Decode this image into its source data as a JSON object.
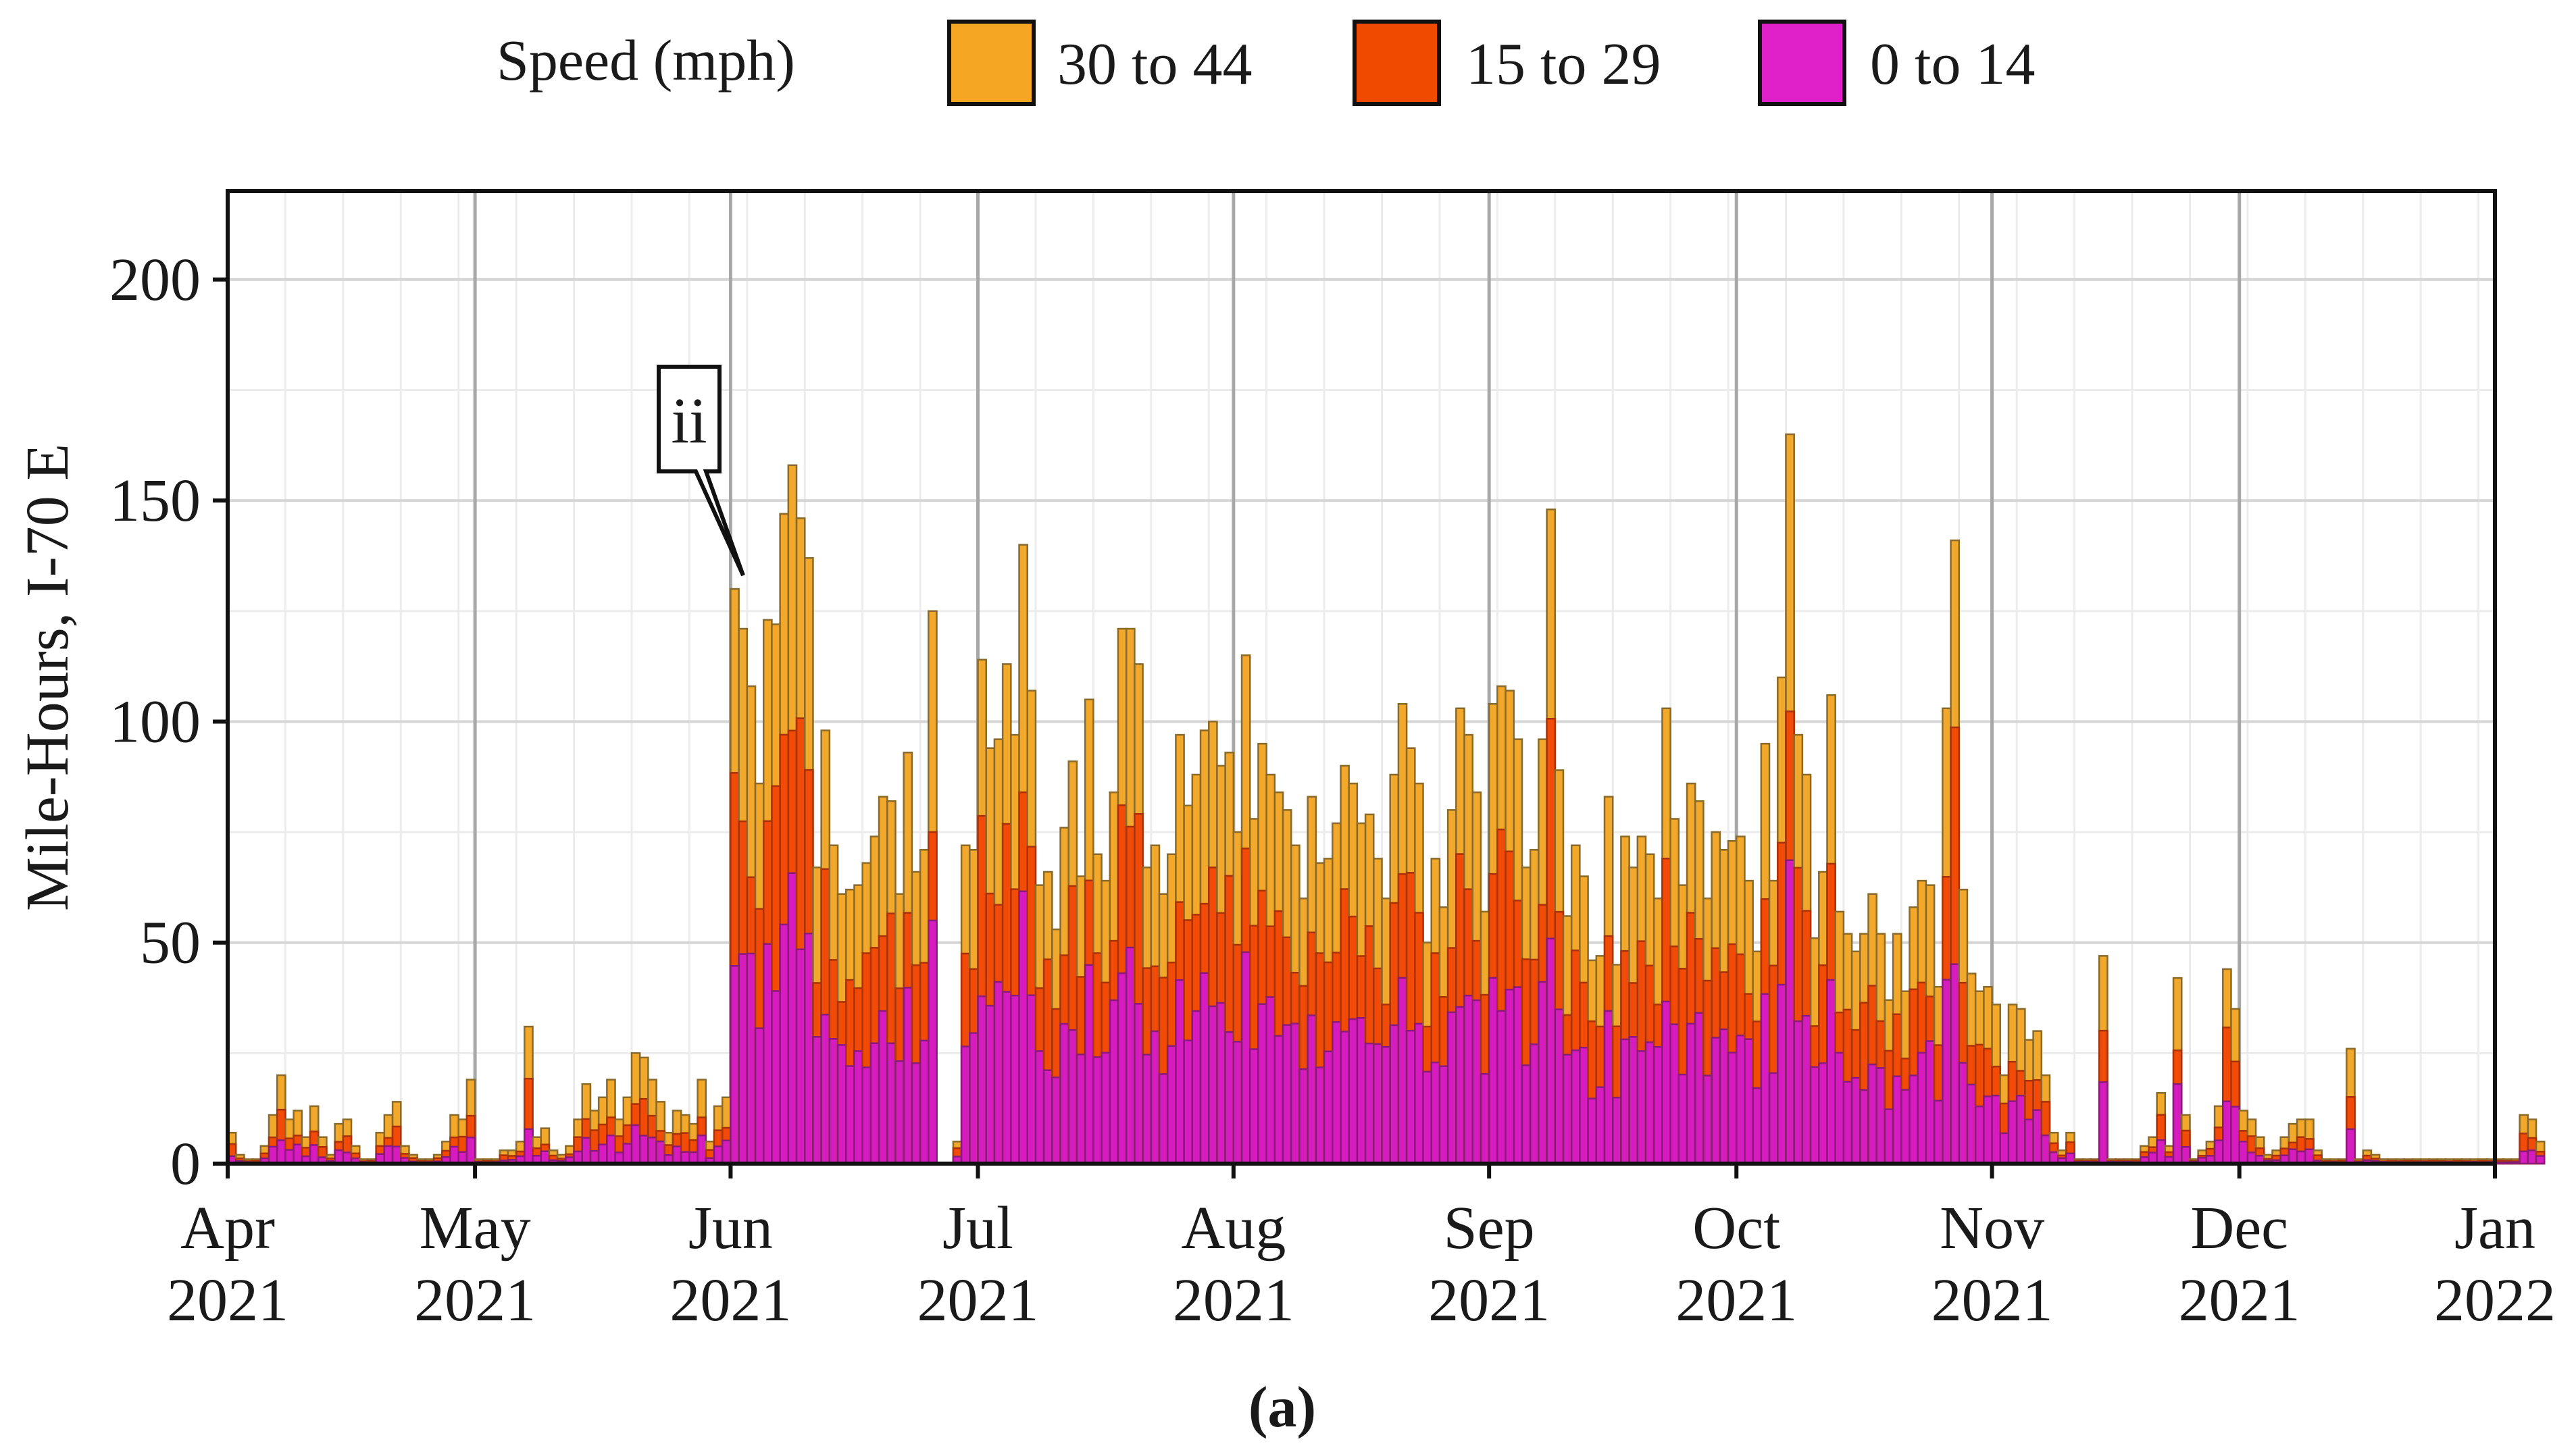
{
  "chart_data": {
    "type": "bar",
    "stacked": true,
    "title": "",
    "xlabel": "",
    "ylabel": "Mile-Hours, I-70 E",
    "ylim": [
      0,
      220
    ],
    "yticks": [
      0,
      50,
      100,
      150,
      200
    ],
    "x_range": [
      "2021-04-01",
      "2022-01-01"
    ],
    "x_tick_labels": [
      {
        "date": "2021-04-01",
        "line1": "Apr",
        "line2": "2021"
      },
      {
        "date": "2021-05-01",
        "line1": "May",
        "line2": "2021"
      },
      {
        "date": "2021-06-01",
        "line1": "Jun",
        "line2": "2021"
      },
      {
        "date": "2021-07-01",
        "line1": "Jul",
        "line2": "2021"
      },
      {
        "date": "2021-08-01",
        "line1": "Aug",
        "line2": "2021"
      },
      {
        "date": "2021-09-01",
        "line1": "Sep",
        "line2": "2021"
      },
      {
        "date": "2021-10-01",
        "line1": "Oct",
        "line2": "2021"
      },
      {
        "date": "2021-11-01",
        "line1": "Nov",
        "line2": "2021"
      },
      {
        "date": "2021-12-01",
        "line1": "Dec",
        "line2": "2021"
      },
      {
        "date": "2022-01-01",
        "line1": "Jan",
        "line2": "2022"
      }
    ],
    "legend": {
      "title": "Speed (mph)",
      "position": "top-center",
      "entries": [
        {
          "label": "30 to 44",
          "color": "#F5A623"
        },
        {
          "label": "15 to 29",
          "color": "#F04A00"
        },
        {
          "label": "0 to 14",
          "color": "#E020C8"
        }
      ]
    },
    "series_colors": {
      "s0_14": "#D61CBE",
      "s15_29": "#F24A07",
      "s30_44": "#F2A82A"
    },
    "bar_edge_color": "#8a6a2a",
    "start_date": "2021-04-01",
    "totals": [
      7,
      2,
      1,
      1,
      4,
      11,
      20,
      10,
      12,
      6,
      13,
      6,
      2,
      9,
      10,
      4,
      1,
      1,
      7,
      11,
      14,
      4,
      2,
      1,
      1,
      2,
      5,
      11,
      10,
      19,
      1,
      1,
      1,
      3,
      3,
      5,
      31,
      6,
      8,
      3,
      2,
      4,
      10,
      18,
      12,
      15,
      19,
      10,
      15,
      25,
      24,
      19,
      14,
      7,
      12,
      11,
      9,
      19,
      5,
      13,
      15,
      130,
      121,
      108,
      86,
      123,
      122,
      147,
      158,
      146,
      137,
      67,
      98,
      72,
      61,
      62,
      63,
      68,
      74,
      83,
      82,
      61,
      93,
      66,
      71,
      125,
      0,
      0,
      5,
      72,
      71,
      114,
      94,
      96,
      113,
      97,
      140,
      107,
      63,
      66,
      53,
      76,
      91,
      65,
      105,
      70,
      64,
      84,
      121,
      121,
      113,
      67,
      72,
      61,
      70,
      97,
      81,
      88,
      98,
      100,
      90,
      93,
      75,
      115,
      78,
      95,
      88,
      84,
      80,
      72,
      60,
      83,
      68,
      69,
      77,
      90,
      86,
      77,
      79,
      69,
      60,
      88,
      104,
      94,
      86,
      50,
      69,
      58,
      80,
      103,
      97,
      84,
      57,
      104,
      108,
      107,
      96,
      67,
      71,
      96,
      148,
      89,
      56,
      72,
      65,
      46,
      47,
      83,
      45,
      74,
      67,
      74,
      70,
      60,
      103,
      78,
      63,
      86,
      82,
      60,
      75,
      71,
      73,
      74,
      64,
      48,
      95,
      64,
      110,
      165,
      97,
      88,
      51,
      66,
      106,
      57,
      52,
      48,
      52,
      61,
      52,
      37,
      52,
      39,
      58,
      64,
      63,
      40,
      103,
      141,
      62,
      43,
      39,
      40,
      36,
      20,
      36,
      35,
      28,
      30,
      20,
      7,
      3,
      7,
      1,
      1,
      1,
      47,
      1,
      1,
      1,
      1,
      4,
      6,
      16,
      4,
      42,
      11,
      1,
      3,
      5,
      13,
      44,
      35,
      12,
      10,
      6,
      2,
      3,
      6,
      9,
      10,
      10,
      3,
      1,
      1,
      1,
      26,
      1,
      3,
      2,
      1,
      1,
      1,
      1,
      1,
      1,
      1,
      1,
      1,
      1,
      1,
      1,
      1,
      1,
      1,
      1,
      1,
      11,
      10,
      5
    ],
    "mid_share": [
      0.65,
      0.58
    ],
    "low_share": [
      0.38,
      0.3
    ],
    "annotation": {
      "text": "ii",
      "date": "2021-06-01",
      "value": 130
    }
  },
  "caption": "(a)"
}
